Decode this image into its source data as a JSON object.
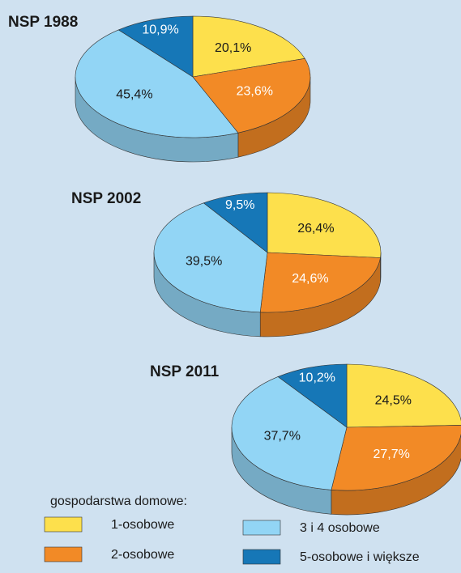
{
  "chart_data": [
    {
      "type": "pie",
      "title": "NSP 1988",
      "legend_title": "gospodarstwa domowe:",
      "categories": [
        "1-osobowe",
        "2-osobowe",
        "3 i 4 osobowe",
        "5-osobowe i większe"
      ],
      "colors": [
        "#fde04c",
        "#f28a26",
        "#92d5f5",
        "#1677b7"
      ],
      "values": [
        20.1,
        23.6,
        45.4,
        10.9
      ],
      "value_labels": [
        "20,1%",
        "23,6%",
        "45,4%",
        "10,9%"
      ]
    },
    {
      "type": "pie",
      "title": "NSP 2002",
      "categories": [
        "1-osobowe",
        "2-osobowe",
        "3 i 4 osobowe",
        "5-osobowe i większe"
      ],
      "colors": [
        "#fde04c",
        "#f28a26",
        "#92d5f5",
        "#1677b7"
      ],
      "values": [
        26.4,
        24.6,
        39.5,
        9.5
      ],
      "value_labels": [
        "26,4%",
        "24,6%",
        "39,5%",
        "9,5%"
      ]
    },
    {
      "type": "pie",
      "title": "NSP 2011",
      "categories": [
        "1-osobowe",
        "2-osobowe",
        "3 i 4 osobowe",
        "5-osobowe i większe"
      ],
      "colors": [
        "#fde04c",
        "#f28a26",
        "#92d5f5",
        "#1677b7"
      ],
      "values": [
        24.5,
        27.7,
        37.7,
        10.2
      ],
      "value_labels": [
        "24,5%",
        "27,7%",
        "37,7%",
        "10,2%"
      ]
    }
  ]
}
